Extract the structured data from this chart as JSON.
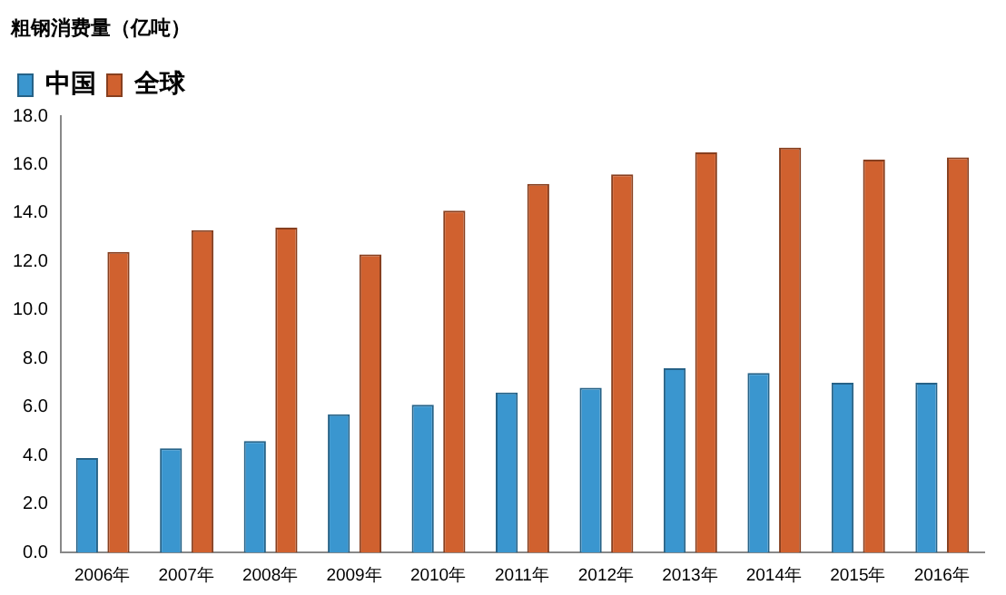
{
  "chart_data": {
    "type": "bar",
    "ylabel": "粗钢消费量（亿吨）",
    "categories": [
      "2006年",
      "2007年",
      "2008年",
      "2009年",
      "2010年",
      "2011年",
      "2012年",
      "2013年",
      "2014年",
      "2015年",
      "2016年"
    ],
    "series": [
      {
        "name": "中国",
        "color": "#3a96cf",
        "values": [
          3.9,
          4.3,
          4.6,
          5.7,
          6.1,
          6.6,
          6.8,
          7.6,
          7.4,
          7.0,
          7.0
        ]
      },
      {
        "name": "全球",
        "color": "#d0612f",
        "values": [
          12.4,
          13.3,
          13.4,
          12.3,
          14.1,
          15.2,
          15.6,
          16.5,
          16.7,
          16.2,
          16.3
        ]
      }
    ],
    "ylim": [
      0,
      18
    ],
    "yticks": [
      {
        "value": 0,
        "label": "0.0"
      },
      {
        "value": 2,
        "label": "2.0"
      },
      {
        "value": 4,
        "label": "4.0"
      },
      {
        "value": 6,
        "label": "6.0"
      },
      {
        "value": 8,
        "label": "8.0"
      },
      {
        "value": 10,
        "label": "10.0"
      },
      {
        "value": 12,
        "label": "12.0"
      },
      {
        "value": 14,
        "label": "14.0"
      },
      {
        "value": 16,
        "label": "16.0"
      },
      {
        "value": 18,
        "label": "18.0"
      }
    ],
    "grid": false,
    "legend": "top left"
  }
}
